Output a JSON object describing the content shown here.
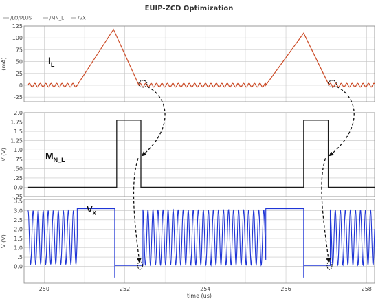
{
  "title": "EUIP-ZCD Optimization",
  "legend": [
    "/LO/PLUS",
    "/MN_L",
    "/VX"
  ],
  "colors": {
    "il": "#cc4a25",
    "mnl": "#1a1a1a",
    "vx": "#1f35d6",
    "grid": "#c4c4c4",
    "legend_mark": "#999999",
    "arrow": "#111111"
  },
  "chart_data": {
    "type": "line",
    "x_label": "time (us)",
    "x_range": [
      249.5,
      258.2
    ],
    "x_ticks": [
      250,
      252,
      254,
      256,
      258
    ],
    "panels": [
      {
        "id": "il",
        "signal_label": "I",
        "signal_sub": "L",
        "y_label": "(mA)",
        "y_range": [
          -35,
          125
        ],
        "y_ticks": [
          -25,
          0,
          25,
          50,
          75,
          100,
          125
        ],
        "y_tick_labels": [
          "-25",
          "0",
          "25",
          "50",
          "75",
          "100",
          "125"
        ],
        "series": [
          {
            "waveform": "piecewise-linear with ringing",
            "segments": [
              {
                "x": [
                  249.6,
                  250.82
                ],
                "y": [
                  0,
                  0
                ],
                "ringing_amp": 4,
                "ringing_period_us": 0.135
              },
              {
                "x": [
                  250.82,
                  251.72
                ],
                "y": [
                  0,
                  118
                ]
              },
              {
                "x": [
                  251.72,
                  252.35
                ],
                "y": [
                  118,
                  0
                ]
              },
              {
                "x": [
                  252.35,
                  255.5
                ],
                "y": [
                  0,
                  0
                ],
                "ringing_amp": 4,
                "ringing_period_us": 0.135
              },
              {
                "x": [
                  255.5,
                  256.44
                ],
                "y": [
                  0,
                  110
                ]
              },
              {
                "x": [
                  256.44,
                  257.07
                ],
                "y": [
                  110,
                  0
                ]
              },
              {
                "x": [
                  257.07,
                  258.2
                ],
                "y": [
                  0,
                  0
                ],
                "ringing_amp": 4,
                "ringing_period_us": 0.135
              }
            ]
          }
        ]
      },
      {
        "id": "mnl",
        "signal_label": "M",
        "signal_sub": "N_L",
        "y_label": "V (V)",
        "y_range": [
          -0.25,
          2.0
        ],
        "y_ticks": [
          -0.25,
          0,
          0.25,
          0.5,
          0.75,
          1.0,
          1.25,
          1.5,
          1.75,
          2.0
        ],
        "y_tick_labels": [
          "-.25",
          "0.0",
          ".25",
          ".50",
          ".75",
          "1.0",
          "1.25",
          "1.5",
          "1.75",
          "2.0"
        ],
        "series": [
          {
            "waveform": "pulses",
            "low": 0,
            "high": 1.8,
            "pulses": [
              [
                251.8,
                252.4
              ],
              [
                256.44,
                257.05
              ]
            ]
          }
        ]
      },
      {
        "id": "vx",
        "signal_label": "V",
        "signal_sub": "X",
        "y_label": "V (V)",
        "y_range": [
          -0.9,
          3.6
        ],
        "y_ticks": [
          0,
          0.5,
          1.0,
          1.5,
          2.0,
          2.5,
          3.0,
          3.5
        ],
        "y_tick_labels": [
          "0.0",
          ".5",
          "1.0",
          "1.5",
          "2.0",
          "2.5",
          "3.0",
          "3.5"
        ],
        "series": [
          {
            "waveform": "mixed",
            "segments": [
              {
                "kind": "osc",
                "x": [
                  249.6,
                  250.82
                ],
                "center": 1.55,
                "amp": 1.45,
                "period_us": 0.125
              },
              {
                "kind": "flat",
                "x": [
                  250.82,
                  251.75
                ],
                "y": 3.1
              },
              {
                "kind": "drop",
                "x": 251.75,
                "y_from": 3.1,
                "y_to": -0.6
              },
              {
                "kind": "flat",
                "x": [
                  251.75,
                  252.45
                ],
                "y": 0.05
              },
              {
                "kind": "osc",
                "x": [
                  252.45,
                  255.5
                ],
                "center": 1.55,
                "amp": 1.5,
                "period_us": 0.125
              },
              {
                "kind": "flat",
                "x": [
                  255.5,
                  256.44
                ],
                "y": 3.1
              },
              {
                "kind": "drop",
                "x": 256.44,
                "y_from": 3.1,
                "y_to": -0.6
              },
              {
                "kind": "flat",
                "x": [
                  256.44,
                  257.1
                ],
                "y": 0.05
              },
              {
                "kind": "osc",
                "x": [
                  257.1,
                  258.2
                ],
                "center": 1.55,
                "amp": 1.5,
                "period_us": 0.125
              }
            ]
          }
        ]
      }
    ],
    "annotations": [
      {
        "type": "dashed-arrow",
        "description": "ZCD point on I_L maps to M_N_L falling edge and V_X edge",
        "circle_x": 252.45,
        "panel_circle": "il",
        "target_panels": [
          "mnl",
          "vx"
        ]
      },
      {
        "type": "dashed-arrow",
        "description": "ZCD point on I_L maps to M_N_L falling edge and V_X edge",
        "circle_x": 257.15,
        "panel_circle": "il",
        "target_panels": [
          "mnl",
          "vx"
        ]
      }
    ]
  }
}
